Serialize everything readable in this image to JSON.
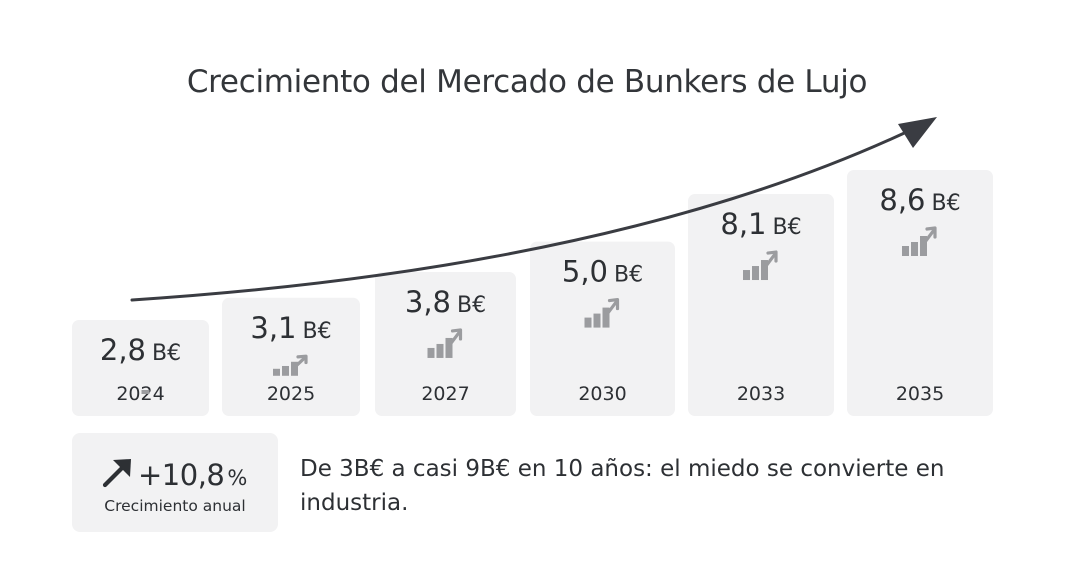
{
  "chart_data": {
    "type": "bar",
    "title": "Crecimiento del Mercado de Bunkers de Lujo",
    "unit": "B€",
    "categories": [
      "2024",
      "2025",
      "2027",
      "2030",
      "2033",
      "2035"
    ],
    "values": [
      2.8,
      3.1,
      3.8,
      5.0,
      8.1,
      8.6
    ],
    "value_labels": [
      "2,8",
      "3,1",
      "3,8",
      "5,0",
      "8,1",
      "8,6"
    ],
    "grid": false,
    "trend_arrow": true,
    "colors": {
      "bar": "#f2f2f3",
      "text": "#2d3034",
      "arrow": "#3a3c42",
      "icon": "#9b9c9f"
    }
  },
  "growth": {
    "value": "+10,8",
    "percent_sign": "%",
    "label": "Crecimiento anual",
    "icon": "arrow-up-right-icon"
  },
  "summary_text": "De 3B€ a casi 9B€ en 10 años: el miedo se convierte en industria."
}
